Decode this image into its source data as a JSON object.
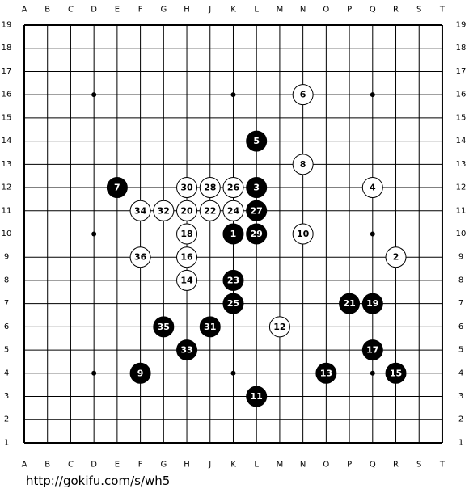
{
  "board": {
    "columns": [
      "A",
      "B",
      "C",
      "D",
      "E",
      "F",
      "G",
      "H",
      "J",
      "K",
      "L",
      "M",
      "N",
      "O",
      "P",
      "Q",
      "R",
      "S",
      "T"
    ],
    "rows": [
      19,
      18,
      17,
      16,
      15,
      14,
      13,
      12,
      11,
      10,
      9,
      8,
      7,
      6,
      5,
      4,
      3,
      2,
      1
    ],
    "star_points": [
      [
        "D",
        16
      ],
      [
        "K",
        16
      ],
      [
        "Q",
        16
      ],
      [
        "D",
        10
      ],
      [
        "K",
        10
      ],
      [
        "Q",
        10
      ],
      [
        "D",
        4
      ],
      [
        "K",
        4
      ],
      [
        "Q",
        4
      ]
    ],
    "stones": [
      {
        "number": 1,
        "color": "black",
        "col": "K",
        "row": 10
      },
      {
        "number": 2,
        "color": "white",
        "col": "R",
        "row": 9
      },
      {
        "number": 3,
        "color": "black",
        "col": "L",
        "row": 12
      },
      {
        "number": 4,
        "color": "white",
        "col": "Q",
        "row": 12
      },
      {
        "number": 5,
        "color": "black",
        "col": "L",
        "row": 14
      },
      {
        "number": 6,
        "color": "white",
        "col": "N",
        "row": 16
      },
      {
        "number": 7,
        "color": "black",
        "col": "E",
        "row": 12
      },
      {
        "number": 8,
        "color": "white",
        "col": "N",
        "row": 13
      },
      {
        "number": 9,
        "color": "black",
        "col": "F",
        "row": 4
      },
      {
        "number": 10,
        "color": "white",
        "col": "N",
        "row": 10
      },
      {
        "number": 11,
        "color": "black",
        "col": "L",
        "row": 3
      },
      {
        "number": 12,
        "color": "white",
        "col": "M",
        "row": 6
      },
      {
        "number": 13,
        "color": "black",
        "col": "O",
        "row": 4
      },
      {
        "number": 14,
        "color": "white",
        "col": "H",
        "row": 8
      },
      {
        "number": 15,
        "color": "black",
        "col": "R",
        "row": 4
      },
      {
        "number": 16,
        "color": "white",
        "col": "H",
        "row": 9
      },
      {
        "number": 17,
        "color": "black",
        "col": "Q",
        "row": 5
      },
      {
        "number": 18,
        "color": "white",
        "col": "H",
        "row": 10
      },
      {
        "number": 19,
        "color": "black",
        "col": "Q",
        "row": 7
      },
      {
        "number": 20,
        "color": "white",
        "col": "H",
        "row": 11
      },
      {
        "number": 21,
        "color": "black",
        "col": "P",
        "row": 7
      },
      {
        "number": 22,
        "color": "white",
        "col": "J",
        "row": 11
      },
      {
        "number": 23,
        "color": "black",
        "col": "K",
        "row": 8
      },
      {
        "number": 24,
        "color": "white",
        "col": "K",
        "row": 11
      },
      {
        "number": 25,
        "color": "black",
        "col": "K",
        "row": 7
      },
      {
        "number": 26,
        "color": "white",
        "col": "K",
        "row": 12
      },
      {
        "number": 27,
        "color": "black",
        "col": "L",
        "row": 11
      },
      {
        "number": 28,
        "color": "white",
        "col": "J",
        "row": 12
      },
      {
        "number": 29,
        "color": "black",
        "col": "L",
        "row": 10
      },
      {
        "number": 30,
        "color": "white",
        "col": "H",
        "row": 12
      },
      {
        "number": 31,
        "color": "black",
        "col": "J",
        "row": 6
      },
      {
        "number": 32,
        "color": "white",
        "col": "G",
        "row": 11
      },
      {
        "number": 33,
        "color": "black",
        "col": "H",
        "row": 5
      },
      {
        "number": 34,
        "color": "white",
        "col": "F",
        "row": 11
      },
      {
        "number": 35,
        "color": "black",
        "col": "G",
        "row": 6
      },
      {
        "number": 36,
        "color": "white",
        "col": "F",
        "row": 9
      }
    ]
  },
  "footer": {
    "url": "http://gokifu.com/s/wh5"
  }
}
